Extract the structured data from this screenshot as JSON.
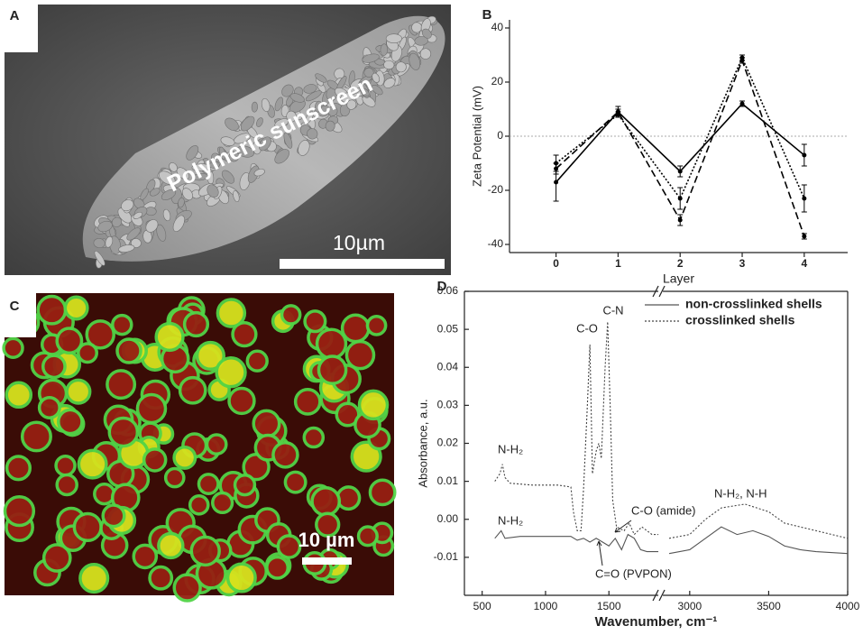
{
  "panels": [
    {
      "label": "A",
      "annotation": "Polymeric sunscreen",
      "scale_bar": "10µm"
    },
    {
      "label": "C",
      "scale_bar": "10 µm"
    }
  ],
  "chart_data": [
    {
      "type": "line",
      "panel_label": "B",
      "xlabel": "Layer",
      "ylabel": "Zeta Potential  (mV)",
      "x": [
        0,
        1,
        2,
        3,
        4
      ],
      "xlim": [
        -0.75,
        4.7
      ],
      "xticks": [
        0,
        1,
        2,
        3,
        4
      ],
      "ylim": [
        -43,
        43
      ],
      "yticks": [
        -40,
        -20,
        0,
        20,
        40
      ],
      "zero_line": true,
      "series": [
        {
          "color": "#000000",
          "dash": "solid",
          "values": [
            -17,
            9,
            -13,
            12,
            -7
          ],
          "errors": [
            7,
            2,
            2,
            1,
            4
          ]
        },
        {
          "color": "#000000",
          "dash": "dashed",
          "values": [
            -12,
            9,
            -31,
            28,
            -37
          ],
          "errors": [
            2,
            1,
            2,
            1,
            1
          ]
        },
        {
          "color": "#000000",
          "dash": "dotted",
          "values": [
            -10,
            8,
            -23,
            29,
            -23
          ],
          "errors": [
            3,
            1,
            4,
            1,
            5
          ]
        }
      ]
    },
    {
      "type": "line",
      "panel_label": "D",
      "xlabel": "Wavenumber, cm⁻¹",
      "ylabel": "Absorbance, a.u.",
      "xlim": [
        360,
        4000
      ],
      "xbreak": [
        1890,
        2830
      ],
      "xticks": [
        500,
        1000,
        1500,
        3000,
        3500,
        4000
      ],
      "ylim": [
        -0.02,
        0.06
      ],
      "yticks": [
        -0.01,
        {
          "value": 0,
          "label": "0.00"
        },
        0.01,
        0.02,
        0.03,
        0.04,
        0.05,
        0.06
      ],
      "legend": "upper right",
      "annotations": [
        "C-O",
        "C-N",
        "N-H₂",
        "N-H₂",
        "C-O (amide)",
        "N-H₂, N-H",
        "C=O (PVPON)"
      ],
      "series": [
        {
          "name": "non-crosslinked shells",
          "color": "#555555",
          "dash": "solid",
          "x": [
            600,
            650,
            680,
            800,
            1000,
            1200,
            1250,
            1300,
            1350,
            1400,
            1450,
            1500,
            1550,
            1600,
            1650,
            1700,
            1750,
            1800,
            1890,
            null,
            2870,
            3000,
            3100,
            3200,
            3300,
            3400,
            3500,
            3600,
            3700,
            3800,
            4000
          ],
          "values": [
            -0.005,
            -0.003,
            -0.005,
            -0.0045,
            -0.0045,
            -0.0045,
            -0.0055,
            -0.005,
            -0.006,
            -0.005,
            -0.006,
            -0.007,
            -0.005,
            -0.008,
            -0.004,
            -0.005,
            -0.008,
            -0.0085,
            -0.0085,
            null,
            -0.009,
            -0.008,
            -0.005,
            -0.002,
            -0.004,
            -0.003,
            -0.0045,
            -0.007,
            -0.008,
            -0.0085,
            -0.009
          ]
        },
        {
          "name": "crosslinked shells",
          "color": "#444444",
          "dash": "dotted",
          "x": [
            600,
            640,
            660,
            680,
            720,
            900,
            1100,
            1200,
            1220,
            1250,
            1280,
            1300,
            1330,
            1350,
            1370,
            1400,
            1420,
            1440,
            1470,
            1490,
            1510,
            1530,
            1560,
            1620,
            1660,
            1700,
            1760,
            1840,
            1890,
            null,
            2870,
            3000,
            3100,
            3200,
            3350,
            3500,
            3600,
            3700,
            3800,
            3900,
            4000
          ],
          "values": [
            0.01,
            0.012,
            0.0145,
            0.011,
            0.0095,
            0.009,
            0.009,
            0.0085,
            0.002,
            -0.003,
            -0.003,
            0.008,
            0.03,
            0.046,
            0.012,
            0.018,
            0.02,
            0.016,
            0.04,
            0.052,
            0.03,
            0.005,
            -0.002,
            -0.003,
            -0.001,
            -0.004,
            -0.002,
            -0.004,
            -0.004,
            null,
            -0.005,
            -0.004,
            0,
            0.003,
            0.004,
            0.002,
            -0.001,
            -0.002,
            -0.003,
            -0.004,
            -0.005
          ]
        }
      ]
    }
  ]
}
